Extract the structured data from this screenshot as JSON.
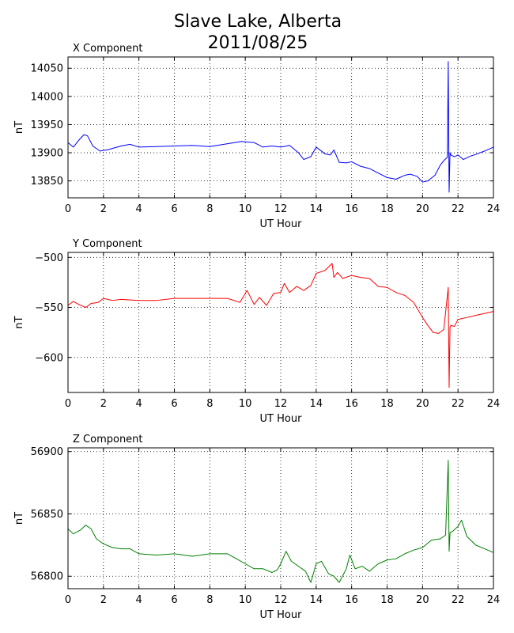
{
  "title_line1": "Slave Lake, Alberta",
  "title_line2": "2011/08/25",
  "chart_data": [
    {
      "type": "line",
      "title": "X Component",
      "xlabel": "UT Hour",
      "ylabel": "nT",
      "xlim": [
        0,
        24
      ],
      "ylim": [
        13820,
        14070
      ],
      "xticks": [
        0,
        2,
        4,
        6,
        8,
        10,
        12,
        14,
        16,
        18,
        20,
        22,
        24
      ],
      "yticks": [
        13850,
        13900,
        13950,
        14000,
        14050
      ],
      "grid": true,
      "color": "#0000ff",
      "series": [
        {
          "x": [
            0,
            0.3,
            0.6,
            0.9,
            1.1,
            1.4,
            1.8,
            2.2,
            3.0,
            3.5,
            4.0,
            5.0,
            6.0,
            7.0,
            8.0,
            9.0,
            9.8,
            10.5,
            11.0,
            11.5,
            12.0,
            12.5,
            13.0,
            13.3,
            13.7,
            14.0,
            14.5,
            14.8,
            15.0,
            15.3,
            15.7,
            16.0,
            16.5,
            17.0,
            17.5,
            18.0,
            18.5,
            19.0,
            19.3,
            19.7,
            20.0,
            20.3,
            20.7,
            21.0,
            21.2,
            21.4,
            21.45,
            21.5,
            21.55,
            21.6,
            21.8,
            22.0,
            22.3,
            22.7,
            23.0,
            23.5,
            24.0
          ],
          "y": [
            13918,
            13910,
            13922,
            13932,
            13930,
            13912,
            13903,
            13905,
            13912,
            13915,
            13910,
            13911,
            13912,
            13913,
            13911,
            13916,
            13920,
            13918,
            13910,
            13912,
            13910,
            13913,
            13900,
            13888,
            13893,
            13910,
            13898,
            13896,
            13905,
            13883,
            13882,
            13884,
            13876,
            13872,
            13864,
            13856,
            13853,
            13860,
            13862,
            13858,
            13848,
            13850,
            13860,
            13878,
            13886,
            13892,
            14062,
            13830,
            13900,
            13896,
            13893,
            13896,
            13888,
            13894,
            13897,
            13903,
            13910
          ]
        }
      ]
    },
    {
      "type": "line",
      "title": "Y Component",
      "xlabel": "UT Hour",
      "ylabel": "nT",
      "xlim": [
        0,
        24
      ],
      "ylim": [
        -635,
        -495
      ],
      "xticks": [
        0,
        2,
        4,
        6,
        8,
        10,
        12,
        14,
        16,
        18,
        20,
        22,
        24
      ],
      "yticks": [
        -500,
        -550,
        -600
      ],
      "grid": true,
      "color": "#ff0000",
      "series": [
        {
          "x": [
            0,
            0.3,
            0.6,
            1.0,
            1.3,
            1.7,
            2.0,
            2.5,
            3.0,
            4.0,
            5.0,
            6.0,
            7.0,
            8.0,
            9.0,
            9.7,
            10.1,
            10.5,
            10.8,
            11.2,
            11.6,
            12.0,
            12.2,
            12.5,
            12.9,
            13.3,
            13.7,
            14.0,
            14.5,
            14.9,
            15.0,
            15.2,
            15.5,
            16.0,
            16.5,
            17.0,
            17.5,
            18.0,
            18.5,
            19.0,
            19.5,
            20.0,
            20.3,
            20.6,
            20.9,
            21.2,
            21.45,
            21.5,
            21.55,
            21.6,
            21.8,
            22.0,
            22.5,
            23.0,
            23.5,
            24.0
          ],
          "y": [
            -548,
            -544,
            -547,
            -550,
            -546,
            -545,
            -541,
            -543,
            -542,
            -543,
            -543,
            -541,
            -541,
            -541,
            -541,
            -545,
            -533,
            -547,
            -540,
            -548,
            -536,
            -535,
            -526,
            -535,
            -529,
            -533,
            -528,
            -516,
            -513,
            -506,
            -520,
            -515,
            -521,
            -518,
            -520,
            -521,
            -529,
            -530,
            -535,
            -538,
            -545,
            -560,
            -568,
            -575,
            -576,
            -572,
            -530,
            -630,
            -570,
            -568,
            -569,
            -562,
            -560,
            -558,
            -556,
            -554
          ]
        }
      ]
    },
    {
      "type": "line",
      "title": "Z Component",
      "xlabel": "UT Hour",
      "ylabel": "nT",
      "xlim": [
        0,
        24
      ],
      "ylim": [
        56790,
        56903
      ],
      "xticks": [
        0,
        2,
        4,
        6,
        8,
        10,
        12,
        14,
        16,
        18,
        20,
        22,
        24
      ],
      "yticks": [
        56800,
        56850,
        56900
      ],
      "grid": true,
      "color": "#008000",
      "series": [
        {
          "x": [
            0,
            0.3,
            0.7,
            1.0,
            1.3,
            1.6,
            2.0,
            2.5,
            3.0,
            3.5,
            4.0,
            5.0,
            6.0,
            7.0,
            8.0,
            9.0,
            9.5,
            10.0,
            10.5,
            11.0,
            11.5,
            11.8,
            12.0,
            12.3,
            12.6,
            13.0,
            13.4,
            13.7,
            14.0,
            14.3,
            14.7,
            15.0,
            15.3,
            15.7,
            15.9,
            16.2,
            16.6,
            17.0,
            17.5,
            18.0,
            18.5,
            19.0,
            19.5,
            20.0,
            20.5,
            21.0,
            21.3,
            21.45,
            21.5,
            21.55,
            21.7,
            22.0,
            22.2,
            22.5,
            23.0,
            23.5,
            24.0
          ],
          "y": [
            56838,
            56834,
            56837,
            56841,
            56838,
            56830,
            56826,
            56823,
            56822,
            56822,
            56818,
            56817,
            56818,
            56816,
            56818,
            56818,
            56814,
            56810,
            56806,
            56806,
            56803,
            56805,
            56810,
            56820,
            56812,
            56808,
            56804,
            56795,
            56810,
            56812,
            56802,
            56800,
            56795,
            56806,
            56817,
            56806,
            56808,
            56804,
            56810,
            56813,
            56814,
            56818,
            56821,
            56823,
            56829,
            56830,
            56833,
            56893,
            56820,
            56835,
            56836,
            56840,
            56845,
            56832,
            56825,
            56822,
            56819
          ]
        }
      ]
    }
  ]
}
